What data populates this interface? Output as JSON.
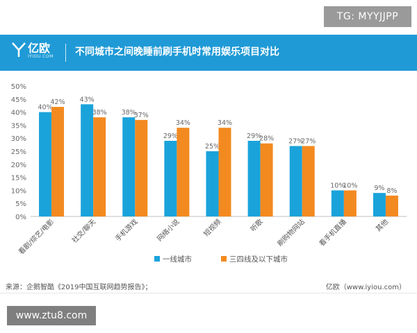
{
  "header_badge": "TG: MYYJJPP",
  "brand": {
    "name": "亿欧",
    "sub": "IYIOU.COM"
  },
  "title": "不同城市之间晚睡前刷手机时常用娱乐项目对比",
  "source": "来源：企鹅智酷《2019中国互联网趋势报告》；",
  "credit": "亿欧（www.iyiou.com）",
  "watermark": "www.ztu8.com",
  "colors": {
    "banner": "#1f9ad6",
    "series1": "#1aa3db",
    "series2": "#f38a20"
  },
  "chart_data": {
    "type": "bar",
    "categories": [
      "看剧/综艺/电影",
      "社交/聊天",
      "手机游戏",
      "网络小说",
      "短视频",
      "听歌",
      "刷购物网站",
      "看手机直播",
      "其他"
    ],
    "series": [
      {
        "name": "一线城市",
        "values": [
          40,
          43,
          38,
          29,
          25,
          29,
          27,
          10,
          9
        ]
      },
      {
        "name": "三四线及以下城市",
        "values": [
          42,
          38,
          37,
          34,
          34,
          28,
          27,
          10,
          8
        ]
      }
    ],
    "yticks": [
      "0%",
      "5%",
      "10%",
      "15%",
      "20%",
      "25%",
      "30%",
      "35%",
      "40%",
      "45%",
      "50%"
    ],
    "ylim": [
      0,
      50
    ],
    "unit": "%",
    "legend_position": "bottom-center",
    "grid": false
  }
}
